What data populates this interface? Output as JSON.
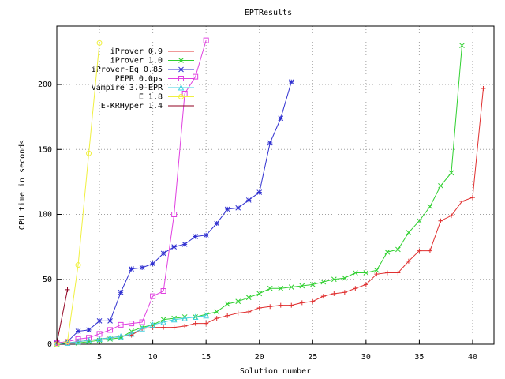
{
  "chart_data": {
    "type": "line",
    "title": "EPTResults",
    "x_label": "Solution number",
    "y_label": "CPU time in seconds",
    "x": [
      1,
      2,
      3,
      4,
      5,
      6,
      7,
      8,
      9,
      10,
      11,
      12,
      13,
      14,
      15,
      16,
      17,
      18,
      19,
      20,
      21,
      22,
      23,
      24,
      25,
      26,
      27,
      28,
      29,
      30,
      31,
      32,
      33,
      34,
      35,
      36,
      37,
      38,
      39,
      40,
      41
    ],
    "xlim": [
      1,
      42
    ],
    "xticks": [
      5,
      10,
      15,
      20,
      25,
      30,
      35,
      40
    ],
    "ylim": [
      0,
      245
    ],
    "yticks": [
      0,
      50,
      100,
      150,
      200
    ],
    "grid": true,
    "legend": "top-left",
    "series": [
      {
        "name": "iProver 0.9",
        "color": "#e03030",
        "marker": "plus",
        "values": [
          1,
          1,
          2,
          3,
          4,
          5,
          6,
          7,
          12,
          13,
          13,
          13,
          14,
          16,
          16,
          20,
          22,
          24,
          25,
          28,
          29,
          30,
          30,
          32,
          33,
          37,
          39,
          40,
          43,
          46,
          54,
          55,
          55,
          64,
          72,
          72,
          95,
          99,
          110,
          113,
          197
        ]
      },
      {
        "name": "iProver 1.0",
        "color": "#30d030",
        "marker": "cross",
        "values": [
          1,
          1,
          1,
          2,
          3,
          4,
          5,
          10,
          13,
          15,
          19,
          20,
          21,
          21,
          23,
          25,
          31,
          33,
          36,
          39,
          43,
          43,
          44,
          45,
          46,
          48,
          50,
          51,
          55,
          55,
          57,
          71,
          73,
          86,
          95,
          106,
          122,
          132,
          230,
          null,
          null
        ]
      },
      {
        "name": "iProver-Eq 0.85",
        "color": "#3030d0",
        "marker": "star",
        "values": [
          1,
          2,
          10,
          11,
          18,
          18,
          40,
          58,
          59,
          62,
          70,
          75,
          77,
          83,
          84,
          93,
          104,
          105,
          111,
          117,
          155,
          174,
          202,
          null,
          null,
          null,
          null,
          null,
          null,
          null,
          null,
          null,
          null,
          null,
          null,
          null,
          null,
          null,
          null,
          null,
          null
        ]
      },
      {
        "name": "PEPR 0.0ps",
        "color": "#e040e0",
        "marker": "box",
        "values": [
          1,
          2,
          4,
          5,
          8,
          11,
          15,
          16,
          17,
          37,
          41,
          100,
          193,
          206,
          234,
          null,
          null,
          null,
          null,
          null,
          null,
          null,
          null,
          null,
          null,
          null,
          null,
          null,
          null,
          null,
          null,
          null,
          null,
          null,
          null,
          null,
          null,
          null,
          null,
          null,
          null
        ]
      },
      {
        "name": "Vampire 3.0-EPR",
        "color": "#40d0e0",
        "marker": "triangle",
        "values": [
          0,
          1,
          2,
          3,
          4,
          5,
          6,
          8,
          12,
          15,
          17,
          19,
          20,
          21,
          22,
          null,
          null,
          null,
          null,
          null,
          null,
          null,
          null,
          null,
          null,
          null,
          null,
          null,
          null,
          null,
          null,
          null,
          null,
          null,
          null,
          null,
          null,
          null,
          null,
          null,
          null
        ]
      },
      {
        "name": "E 1.8",
        "color": "#f0f040",
        "marker": "circle",
        "values": [
          0,
          2,
          61,
          147,
          232,
          null,
          null,
          null,
          null,
          null,
          null,
          null,
          null,
          null,
          null,
          null,
          null,
          null,
          null,
          null,
          null,
          null,
          null,
          null,
          null,
          null,
          null,
          null,
          null,
          null,
          null,
          null,
          null,
          null,
          null,
          null,
          null,
          null,
          null,
          null,
          null
        ]
      },
      {
        "name": "E-KRHyper 1.4",
        "color": "#900020",
        "marker": "plus",
        "values": [
          1,
          42,
          null,
          null,
          null,
          null,
          null,
          null,
          null,
          null,
          null,
          null,
          null,
          null,
          null,
          null,
          null,
          null,
          null,
          null,
          null,
          null,
          null,
          null,
          null,
          null,
          null,
          null,
          null,
          null,
          null,
          null,
          null,
          null,
          null,
          null,
          null,
          null,
          null,
          null,
          null
        ]
      }
    ]
  }
}
